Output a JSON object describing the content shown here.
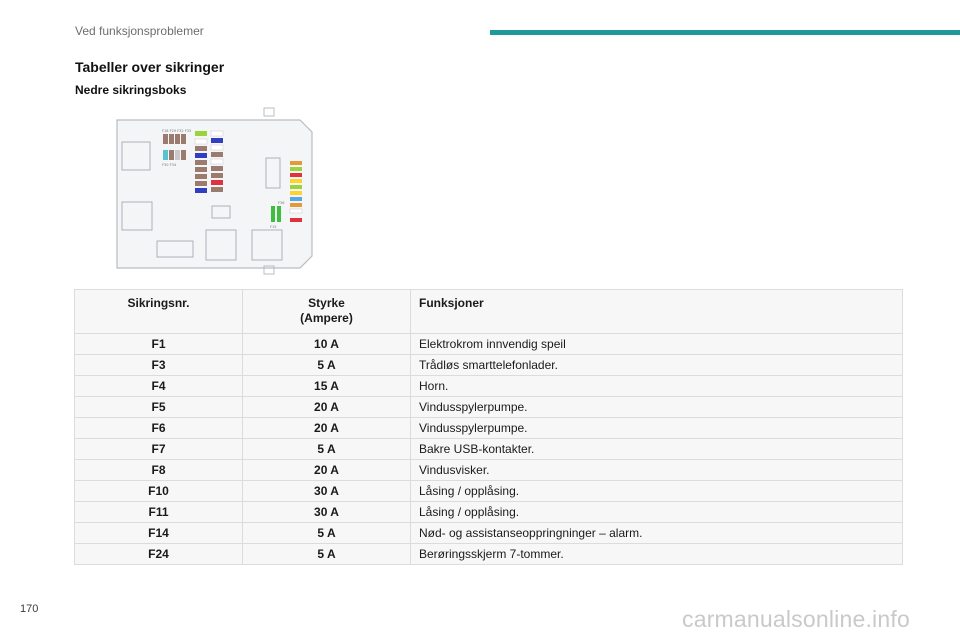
{
  "header": {
    "section": "Ved funksjonsproblemer",
    "bar_color": "#1f9a9a"
  },
  "heading": "Tabeller over sikringer",
  "subheading": "Nedre sikringsboks",
  "table": {
    "columns": {
      "number": "Sikringsnr.",
      "rating_line1": "Styrke",
      "rating_line2": "(Ampere)",
      "function": "Funksjoner"
    },
    "rows": [
      {
        "number": "F1",
        "rating": "10 A",
        "function": "Elektrokrom innvendig speil"
      },
      {
        "number": "F3",
        "rating": "5 A",
        "function": "Trådløs smarttelefonlader."
      },
      {
        "number": "F4",
        "rating": "15 A",
        "function": "Horn."
      },
      {
        "number": "F5",
        "rating": "20 A",
        "function": "Vindusspylerpumpe."
      },
      {
        "number": "F6",
        "rating": "20 A",
        "function": "Vindusspylerpumpe."
      },
      {
        "number": "F7",
        "rating": "5 A",
        "function": "Bakre USB-kontakter."
      },
      {
        "number": "F8",
        "rating": "20 A",
        "function": "Vindusvisker."
      },
      {
        "number": "F10",
        "rating": "30 A",
        "function": "Låsing / opplåsing."
      },
      {
        "number": "F11",
        "rating": "30 A",
        "function": "Låsing / opplåsing."
      },
      {
        "number": "F14",
        "rating": "5 A",
        "function": "Nød- og assistanseoppringninger – alarm."
      },
      {
        "number": "F24",
        "rating": "5 A",
        "function": "Berøringsskjerm 7-tommer."
      }
    ]
  },
  "page_number": "170",
  "watermark": "carmanualsonline.info"
}
